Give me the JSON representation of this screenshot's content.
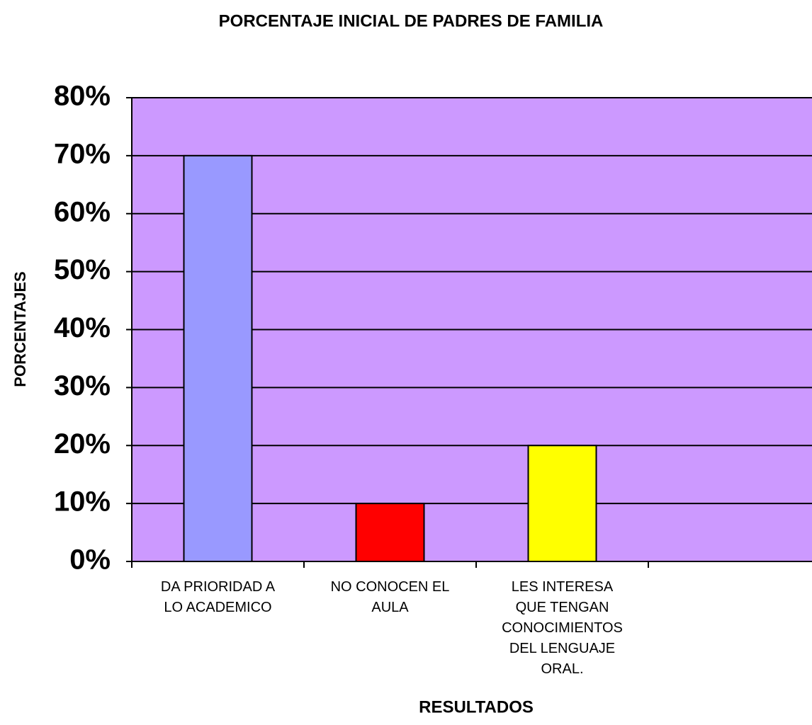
{
  "chart_data": {
    "type": "bar",
    "title": "PORCENTAJE INICIAL DE PADRES DE FAMILIA",
    "x_label": "RESULTADOS",
    "y_label": "PORCENTAJES",
    "categories": [
      "DA PRIORIDAD A LO ACADEMICO",
      "NO CONOCEN EL AULA",
      "LES INTERESA QUE TENGAN CONOCIMIENTOS DEL LENGUAJE ORAL.",
      null
    ],
    "values": [
      70,
      10,
      20,
      null
    ],
    "colors": [
      "#9999ff",
      "#ff0000",
      "#ffff00",
      null
    ],
    "plot_background": "#cc99ff",
    "ylim": [
      0,
      80
    ],
    "yticks": [
      {
        "value": 0,
        "label": "0%"
      },
      {
        "value": 10,
        "label": "10%"
      },
      {
        "value": 20,
        "label": "20%"
      },
      {
        "value": 30,
        "label": "30%"
      },
      {
        "value": 40,
        "label": "40%"
      },
      {
        "value": 50,
        "label": "50%"
      },
      {
        "value": 60,
        "label": "60%"
      },
      {
        "value": 70,
        "label": "70%"
      },
      {
        "value": 80,
        "label": "80%"
      }
    ],
    "grid": true
  }
}
